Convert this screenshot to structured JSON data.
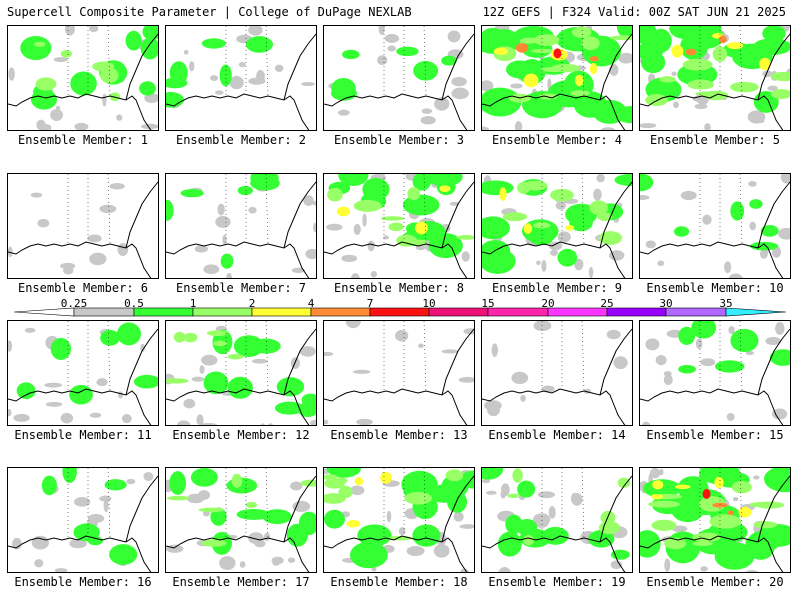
{
  "header": {
    "left": "Supercell Composite Parameter | College of DuPage NEXLAB",
    "right": "12Z GEFS | F324 Valid: 00Z SAT JUN 21 2025"
  },
  "colors": {
    "gray": "#c8c8c8",
    "green": "#33ff33",
    "lightgreen": "#99ff66",
    "yellow": "#ffff33",
    "orange": "#ff8833",
    "red": "#ff1111"
  },
  "colorbar": {
    "ticks": [
      "0.25",
      "0.5",
      "1",
      "2",
      "4",
      "7",
      "10",
      "15",
      "20",
      "25",
      "30",
      "35"
    ],
    "colors": [
      "#c8c8c8",
      "#33ff33",
      "#99ff66",
      "#ffff33",
      "#ff8c33",
      "#ff1111",
      "#ee1177",
      "#ff22aa",
      "#ff33ff",
      "#9900ff",
      "#b366ff",
      "#33eeff"
    ]
  },
  "panels": [
    {
      "label": "Ensemble Member: 1",
      "level": 2
    },
    {
      "label": "Ensemble Member: 2",
      "level": 1
    },
    {
      "label": "Ensemble Member: 3",
      "level": 1
    },
    {
      "label": "Ensemble Member: 4",
      "level": 5
    },
    {
      "label": "Ensemble Member: 5",
      "level": 4
    },
    {
      "label": "Ensemble Member: 6",
      "level": 0
    },
    {
      "label": "Ensemble Member: 7",
      "level": 1
    },
    {
      "label": "Ensemble Member: 8",
      "level": 3
    },
    {
      "label": "Ensemble Member: 9",
      "level": 3
    },
    {
      "label": "Ensemble Member: 10",
      "level": 1
    },
    {
      "label": "Ensemble Member: 11",
      "level": 1
    },
    {
      "label": "Ensemble Member: 12",
      "level": 2
    },
    {
      "label": "Ensemble Member: 13",
      "level": 0
    },
    {
      "label": "Ensemble Member: 14",
      "level": 0
    },
    {
      "label": "Ensemble Member: 15",
      "level": 1
    },
    {
      "label": "Ensemble Member: 16",
      "level": 1
    },
    {
      "label": "Ensemble Member: 17",
      "level": 2
    },
    {
      "label": "Ensemble Member: 18",
      "level": 3
    },
    {
      "label": "Ensemble Member: 19",
      "level": 2
    },
    {
      "label": "Ensemble Member: 20",
      "level": 5
    }
  ]
}
